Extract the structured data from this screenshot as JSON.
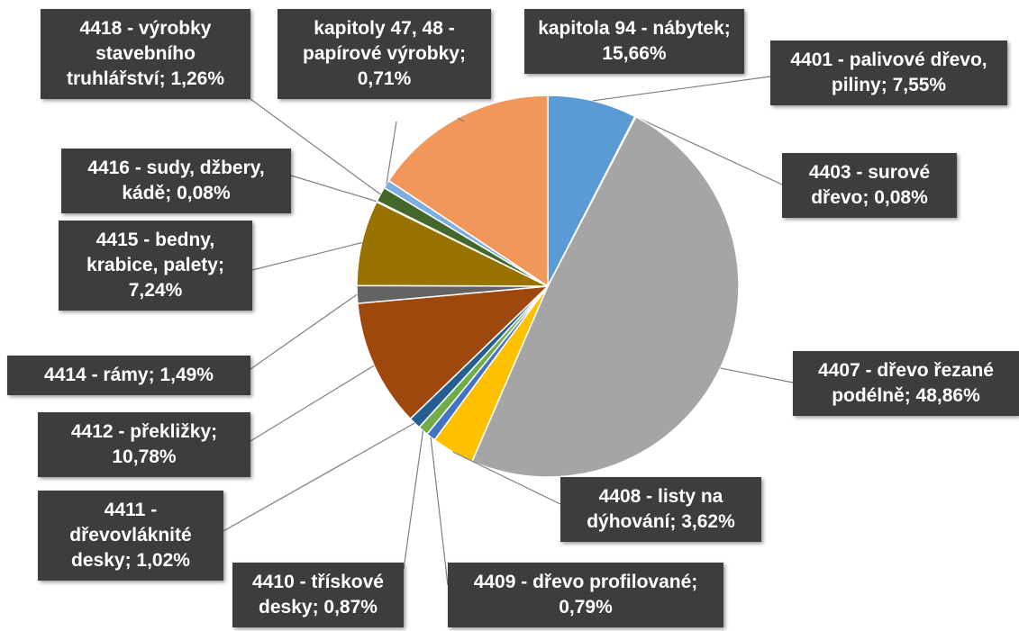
{
  "chart_data": {
    "type": "pie",
    "categories": [
      "4401 - palivové dřevo, piliny;",
      "4403 - surové dřevo;",
      "4407 - dřevo řezané podélně;",
      "4408 - listy na dýhování;",
      "4409 - dřevo profilované;",
      "4410 - třískové desky;",
      "4411 - dřevovláknité desky;",
      "4412 - překližky;",
      "4414 - rámy;",
      "4415 - bedny, krabice, palety;",
      "4416 - sudy, džbery, kádě;",
      "4418 - výrobky stavebního truhlářství;",
      "kapitoly 47, 48 - papírové výrobky;",
      "kapitola 94 - nábytek;"
    ],
    "values": [
      7.55,
      0.08,
      48.86,
      3.62,
      0.79,
      0.87,
      1.02,
      10.78,
      1.49,
      7.24,
      0.08,
      1.26,
      0.71,
      15.66
    ],
    "value_labels": [
      "7,55%",
      "0,08%",
      "48,86%",
      "3,62%",
      "0,79%",
      "0,87%",
      "1,02%",
      "10,78%",
      "1,49%",
      "7,24%",
      "0,08%",
      "1,26%",
      "0,71%",
      "15,66%"
    ],
    "colors": [
      "#5b9bd5",
      "#ed7d31",
      "#a5a5a5",
      "#ffc000",
      "#4472c4",
      "#70ad47",
      "#255e91",
      "#9e480e",
      "#636363",
      "#997300",
      "#264478",
      "#43682b",
      "#7cafdd",
      "#f1975a"
    ]
  }
}
